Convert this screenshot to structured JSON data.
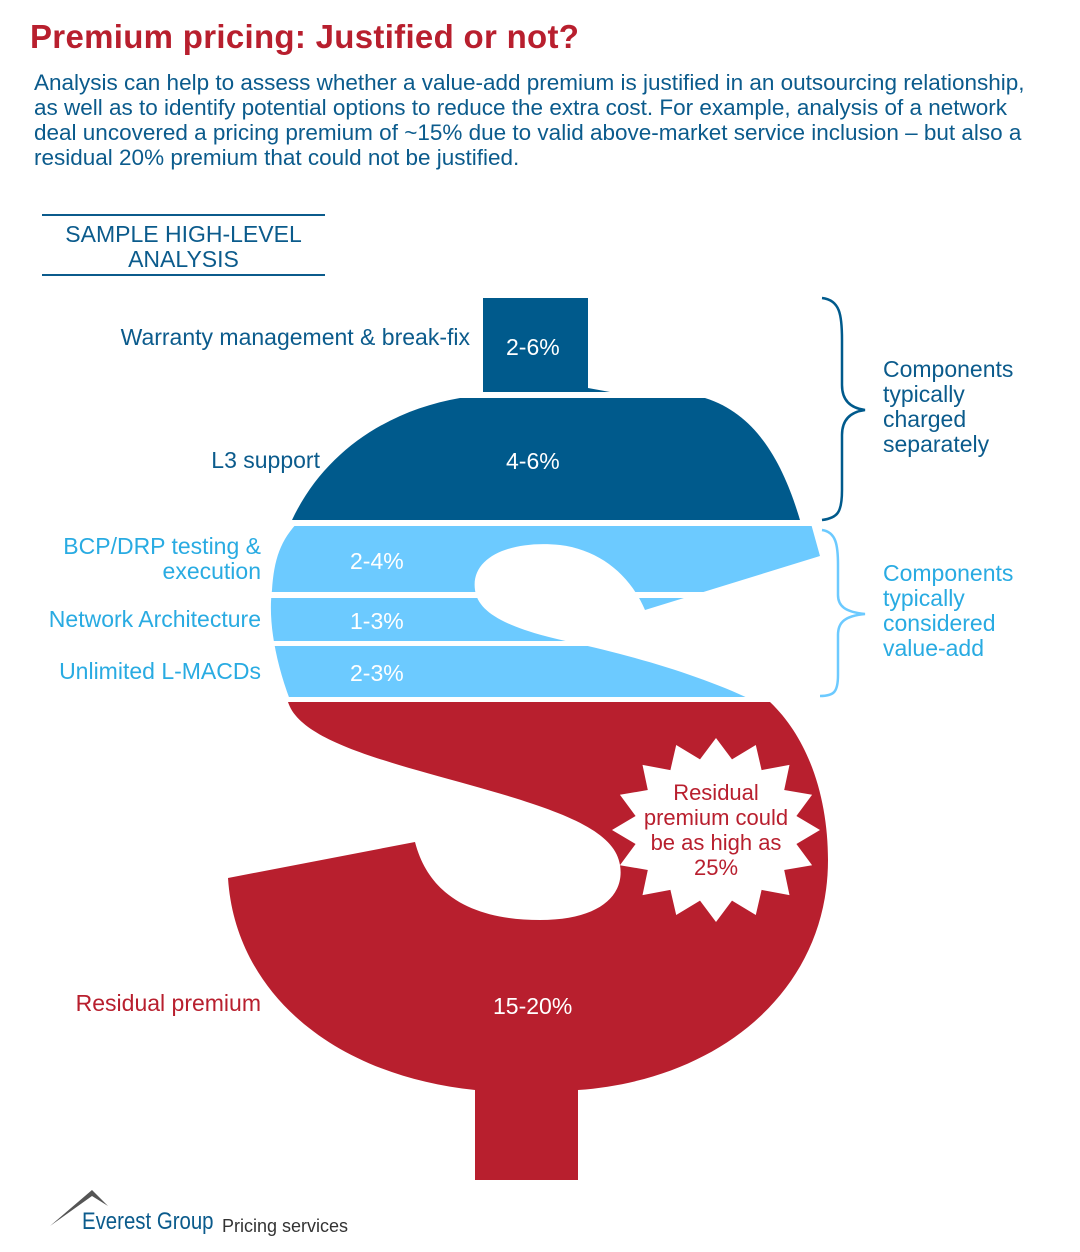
{
  "title": "Premium pricing: Justified or not?",
  "intro": "Analysis can help to assess whether a value-add premium is justified in an outsourcing relationship, as well as to identify potential options to reduce the extra cost. For example, analysis of a network deal uncovered a pricing premium of ~15% due to valid above-market service inclusion – but also a residual 20% premium that could not be justified.",
  "sample_heading": "SAMPLE HIGH-LEVEL ANALYSIS",
  "components": [
    {
      "label": "Warranty management & break-fix",
      "value": "2-6%"
    },
    {
      "label": "L3 support",
      "value": "4-6%"
    },
    {
      "label": "BCP/DRP testing & execution",
      "value": "2-4%"
    },
    {
      "label": "Network Architecture",
      "value": "1-3%"
    },
    {
      "label": "Unlimited L-MACDs",
      "value": "2-3%"
    },
    {
      "label": "Residual premium",
      "value": "15-20%"
    }
  ],
  "groups": {
    "charged_separately": "Components typically charged separately",
    "value_add": "Components typically considered value-add"
  },
  "callout": "Residual premium could be as high as 25%",
  "footer": {
    "brand": "Everest Group",
    "tagline": "Pricing services"
  },
  "colors": {
    "dark_blue": "#005a8c",
    "light_blue": "#6ccaff",
    "red": "#b81f2e"
  }
}
